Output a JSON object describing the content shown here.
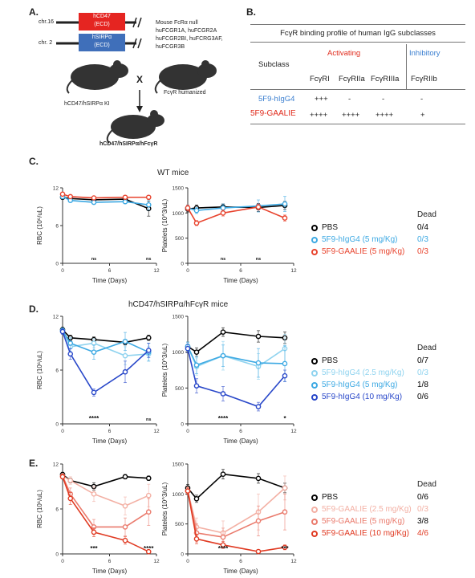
{
  "panels": {
    "A": {
      "label": "A.",
      "chr16": "chr.16",
      "chr2": "chr. 2",
      "hcd47": "hCD47",
      "hcd47_ecd": "(ECD)",
      "hsirpa": "hSIRPα",
      "hsirpa_ecd": "(ECD)",
      "mouse_text": [
        "Mouse FcRα null",
        "huFCGR1A, huFCGR2A",
        "huFCGR2BI, huFCRG3AF,",
        "huFCGR3B"
      ],
      "left_mouse": "hCD47/hSIRPα KI",
      "right_mouse": "FcγR humanized",
      "cross": "X",
      "result": "hCD47/hSIRPα/hFcγR"
    },
    "B": {
      "label": "B.",
      "title": "FcγR binding profile of human IgG subclasses",
      "activating": "Activating",
      "inhibitory": "Inhibitory",
      "subclass": "Subclass",
      "cols": [
        "FcγRI",
        "FcγRIIa",
        "FcγRIIIa",
        "FcγRIIb"
      ],
      "rows": [
        {
          "name": "5F9-hIgG4",
          "color": "#3b7fd0",
          "vals": [
            "+++",
            "-",
            "-",
            "-"
          ]
        },
        {
          "name": "5F9-GAALIE",
          "color": "#e02a1b",
          "vals": [
            "++++",
            "++++",
            "++++",
            "+"
          ]
        }
      ]
    },
    "C": {
      "label": "C.",
      "title": "WT mice"
    },
    "D": {
      "label": "D.",
      "title": "hCD47/hSIRPα/hFcγR mice"
    },
    "E": {
      "label": "E."
    }
  },
  "legends": {
    "C": {
      "dead_header": "Dead",
      "items": [
        {
          "name": "PBS",
          "color": "#000000",
          "dead": "0/4",
          "dead_color": "#000000"
        },
        {
          "name": "5F9-hIgG4 (5 mg/Kg)",
          "color": "#3da9e3",
          "dead": "0/3",
          "dead_color": "#3da9e3"
        },
        {
          "name": "5F9-GAALIE (5 mg/Kg)",
          "color": "#e8432d",
          "dead": "0/3",
          "dead_color": "#e8432d"
        }
      ]
    },
    "D": {
      "dead_header": "Dead",
      "items": [
        {
          "name": "PBS",
          "color": "#000000",
          "dead": "0/7",
          "dead_color": "#000000"
        },
        {
          "name": "5F9-hIgG4 (2.5 mg/Kg)",
          "color": "#8fd3ef",
          "dead": "0/3",
          "dead_color": "#8fd3ef"
        },
        {
          "name": "5F9-hIgG4 (5 mg/Kg)",
          "color": "#3da9e3",
          "dead": "1/8",
          "dead_color": "#000000"
        },
        {
          "name": "5F9-hIgG4 (10 mg/Kg)",
          "color": "#2847c9",
          "dead": "0/6",
          "dead_color": "#000000"
        }
      ]
    },
    "E": {
      "dead_header": "Dead",
      "items": [
        {
          "name": "PBS",
          "color": "#000000",
          "dead": "0/6",
          "dead_color": "#000000"
        },
        {
          "name": "5F9-GAALIE (2.5 mg/Kg)",
          "color": "#f3b0a4",
          "dead": "0/3",
          "dead_color": "#f3b0a4"
        },
        {
          "name": "5F9-GAALIE (5 mg/Kg)",
          "color": "#ea7a6c",
          "dead": "3/8",
          "dead_color": "#000000"
        },
        {
          "name": "5F9-GAALIE (10 mg/Kg)",
          "color": "#e03a22",
          "dead": "4/6",
          "dead_color": "#e03a22"
        }
      ]
    }
  },
  "chart_data": [
    {
      "id": "C-rbc",
      "type": "line",
      "ylabel": "RBC (10⁶/uL)",
      "xlabel": "Time (Days)",
      "xlim": [
        0,
        12
      ],
      "ylim": [
        0,
        12
      ],
      "xticks": [
        0,
        6,
        12
      ],
      "yticks": [
        0,
        6,
        12
      ],
      "series": [
        {
          "name": "PBS",
          "color": "#000000",
          "x": [
            0,
            1,
            4,
            8,
            11
          ],
          "y": [
            10.5,
            10.3,
            10.1,
            10.2,
            8.7
          ],
          "err": [
            0.3,
            0.3,
            0.3,
            0.3,
            1.2
          ]
        },
        {
          "name": "5F9-hIgG4 (5 mg/Kg)",
          "color": "#3da9e3",
          "x": [
            0,
            1,
            4,
            8,
            11
          ],
          "y": [
            10.6,
            10.0,
            9.7,
            9.8,
            9.3
          ],
          "err": [
            0.3,
            0.3,
            0.3,
            0.3,
            0.8
          ]
        },
        {
          "name": "5F9-GAALIE (5 mg/Kg)",
          "color": "#e8432d",
          "x": [
            0,
            1,
            4,
            8,
            11
          ],
          "y": [
            11.0,
            10.6,
            10.4,
            10.5,
            10.5
          ],
          "err": [
            0.2,
            0.2,
            0.2,
            0.2,
            0.2
          ]
        }
      ],
      "annotations": [
        {
          "x": 4,
          "text": "ns"
        },
        {
          "x": 11,
          "text": "ns"
        }
      ]
    },
    {
      "id": "C-plt",
      "type": "line",
      "ylabel": "Platelets (10^3/uL)",
      "xlabel": "Time (Days)",
      "xlim": [
        0,
        12
      ],
      "ylim": [
        0,
        1500
      ],
      "xticks": [
        0,
        6,
        12
      ],
      "yticks": [
        0,
        500,
        1000,
        1500
      ],
      "series": [
        {
          "name": "PBS",
          "color": "#000000",
          "x": [
            0,
            1,
            4,
            8,
            11
          ],
          "y": [
            1080,
            1100,
            1120,
            1110,
            1150
          ],
          "err": [
            60,
            60,
            60,
            80,
            80
          ]
        },
        {
          "name": "5F9-hIgG4 (5 mg/Kg)",
          "color": "#3da9e3",
          "x": [
            0,
            1,
            4,
            8,
            11
          ],
          "y": [
            1100,
            1050,
            1100,
            1140,
            1180
          ],
          "err": [
            60,
            60,
            80,
            120,
            150
          ]
        },
        {
          "name": "5F9-GAALIE (5 mg/Kg)",
          "color": "#e8432d",
          "x": [
            0,
            1,
            4,
            8,
            11
          ],
          "y": [
            1100,
            800,
            1000,
            1120,
            900
          ],
          "err": [
            60,
            50,
            60,
            60,
            60
          ]
        }
      ],
      "annotations": [
        {
          "x": 4,
          "text": "ns"
        },
        {
          "x": 8,
          "text": "ns"
        }
      ]
    },
    {
      "id": "D-rbc",
      "type": "line",
      "ylabel": "RBC (10⁶/uL)",
      "xlabel": "Time (Days)",
      "xlim": [
        0,
        12
      ],
      "ylim": [
        0,
        12
      ],
      "xticks": [
        0,
        6,
        12
      ],
      "yticks": [
        0,
        6,
        12
      ],
      "series": [
        {
          "name": "PBS",
          "color": "#000000",
          "x": [
            0,
            1,
            4,
            8,
            11
          ],
          "y": [
            10.5,
            9.6,
            9.4,
            9.1,
            9.6
          ],
          "err": [
            0.3,
            0.3,
            0.3,
            0.3,
            0.3
          ]
        },
        {
          "name": "5F9-hIgG4 (2.5 mg/Kg)",
          "color": "#8fd3ef",
          "x": [
            0,
            1,
            4,
            8,
            11
          ],
          "y": [
            10.4,
            8.6,
            9.0,
            7.6,
            7.8
          ],
          "err": [
            0.3,
            0.5,
            0.5,
            1.0,
            0.8
          ]
        },
        {
          "name": "5F9-hIgG4 (5 mg/Kg)",
          "color": "#3da9e3",
          "x": [
            0,
            1,
            4,
            8,
            11
          ],
          "y": [
            10.4,
            9.0,
            8.0,
            9.2,
            8.0
          ],
          "err": [
            0.3,
            0.6,
            0.8,
            1.0,
            1.0
          ]
        },
        {
          "name": "5F9-hIgG4 (10 mg/Kg)",
          "color": "#2847c9",
          "x": [
            0,
            1,
            4,
            8,
            11
          ],
          "y": [
            10.3,
            7.8,
            3.5,
            5.8,
            8.2
          ],
          "err": [
            0.3,
            0.6,
            0.4,
            1.2,
            0.8
          ]
        }
      ],
      "annotations": [
        {
          "x": 4,
          "text": "****"
        },
        {
          "x": 11,
          "text": "ns"
        }
      ]
    },
    {
      "id": "D-plt",
      "type": "line",
      "ylabel": "Platelets (10^3/uL)",
      "xlabel": "Time (Days)",
      "xlim": [
        0,
        12
      ],
      "ylim": [
        0,
        1500
      ],
      "xticks": [
        0,
        6,
        12
      ],
      "yticks": [
        0,
        500,
        1000,
        1500
      ],
      "series": [
        {
          "name": "PBS",
          "color": "#000000",
          "x": [
            0,
            1,
            4,
            8,
            11
          ],
          "y": [
            1080,
            1000,
            1280,
            1220,
            1200
          ],
          "err": [
            60,
            60,
            60,
            80,
            80
          ]
        },
        {
          "name": "5F9-hIgG4 (2.5 mg/Kg)",
          "color": "#8fd3ef",
          "x": [
            0,
            1,
            4,
            8,
            11
          ],
          "y": [
            1080,
            800,
            950,
            800,
            1050
          ],
          "err": [
            60,
            120,
            200,
            180,
            200
          ]
        },
        {
          "name": "5F9-hIgG4 (5 mg/Kg)",
          "color": "#3da9e3",
          "x": [
            0,
            1,
            4,
            8,
            11
          ],
          "y": [
            1080,
            820,
            950,
            850,
            840
          ],
          "err": [
            60,
            120,
            150,
            200,
            250
          ]
        },
        {
          "name": "5F9-hIgG4 (10 mg/Kg)",
          "color": "#2847c9",
          "x": [
            0,
            1,
            4,
            8,
            11
          ],
          "y": [
            1050,
            530,
            420,
            240,
            670
          ],
          "err": [
            60,
            100,
            100,
            60,
            80
          ]
        }
      ],
      "annotations": [
        {
          "x": 4,
          "text": "****"
        },
        {
          "x": 11,
          "text": "*"
        }
      ]
    },
    {
      "id": "E-rbc",
      "type": "line",
      "ylabel": "RBC (10⁶/uL)",
      "xlabel": "Time (Days)",
      "xlim": [
        0,
        12
      ],
      "ylim": [
        0,
        12
      ],
      "xticks": [
        0,
        6,
        12
      ],
      "yticks": [
        0,
        6,
        12
      ],
      "series": [
        {
          "name": "PBS",
          "color": "#000000",
          "x": [
            0,
            1,
            4,
            8,
            11
          ],
          "y": [
            10.6,
            9.8,
            9.0,
            10.3,
            10.1
          ],
          "err": [
            0.3,
            0.3,
            0.5,
            0.3,
            0.3
          ]
        },
        {
          "name": "5F9-GAALIE (2.5 mg/Kg)",
          "color": "#f3b0a4",
          "x": [
            0,
            1,
            4,
            8,
            11
          ],
          "y": [
            10.4,
            9.8,
            8.0,
            6.4,
            7.8
          ],
          "err": [
            0.3,
            0.5,
            1.0,
            1.2,
            1.5
          ]
        },
        {
          "name": "5F9-GAALIE (5 mg/Kg)",
          "color": "#ea7a6c",
          "x": [
            0,
            1,
            4,
            8,
            11
          ],
          "y": [
            10.4,
            8.0,
            3.6,
            3.6,
            5.6
          ],
          "err": [
            0.3,
            0.8,
            1.0,
            1.2,
            1.8
          ]
        },
        {
          "name": "5F9-GAALIE (10 mg/Kg)",
          "color": "#e03a22",
          "x": [
            0,
            1,
            4,
            8,
            11
          ],
          "y": [
            10.3,
            7.4,
            2.9,
            1.8,
            0.3
          ],
          "err": [
            0.3,
            0.8,
            0.6,
            0.5,
            0.2
          ]
        }
      ],
      "annotations": [
        {
          "x": 4,
          "text": "***"
        },
        {
          "x": 11,
          "text": "****"
        }
      ]
    },
    {
      "id": "E-plt",
      "type": "line",
      "ylabel": "Platelets (10^3/uL)",
      "xlabel": "Time (Days)",
      "xlim": [
        0,
        12
      ],
      "ylim": [
        0,
        1500
      ],
      "xticks": [
        0,
        6,
        12
      ],
      "yticks": [
        0,
        500,
        1000,
        1500
      ],
      "series": [
        {
          "name": "PBS",
          "color": "#000000",
          "x": [
            0,
            1,
            4,
            8,
            11
          ],
          "y": [
            1100,
            920,
            1330,
            1260,
            1100
          ],
          "err": [
            60,
            60,
            80,
            80,
            80
          ]
        },
        {
          "name": "5F9-GAALIE (2.5 mg/Kg)",
          "color": "#f3b0a4",
          "x": [
            0,
            1,
            4,
            8,
            11
          ],
          "y": [
            1050,
            450,
            350,
            700,
            1100
          ],
          "err": [
            60,
            150,
            200,
            300,
            200
          ]
        },
        {
          "name": "5F9-GAALIE (5 mg/Kg)",
          "color": "#ea7a6c",
          "x": [
            0,
            1,
            4,
            8,
            11
          ],
          "y": [
            1050,
            350,
            280,
            550,
            700
          ],
          "err": [
            60,
            150,
            150,
            250,
            300
          ]
        },
        {
          "name": "5F9-GAALIE (10 mg/Kg)",
          "color": "#e03a22",
          "x": [
            0,
            1,
            4,
            8,
            11
          ],
          "y": [
            1050,
            250,
            150,
            40,
            110
          ],
          "err": [
            60,
            80,
            60,
            20,
            40
          ]
        }
      ],
      "annotations": [
        {
          "x": 4,
          "text": "****"
        },
        {
          "x": 11,
          "text": "***"
        }
      ]
    }
  ]
}
